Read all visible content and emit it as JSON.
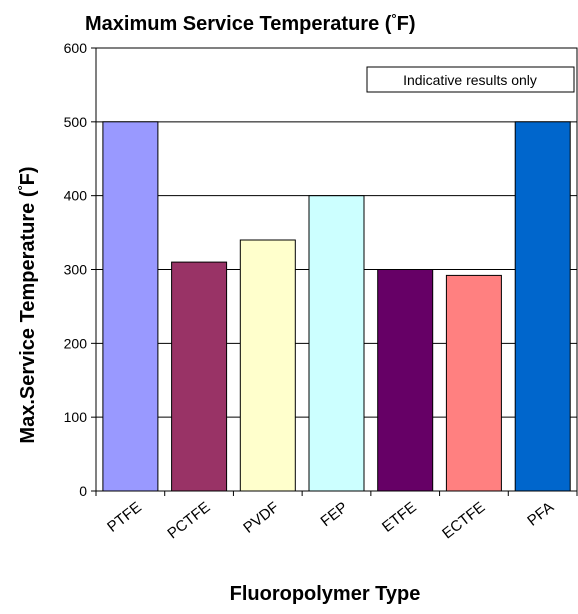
{
  "chart_data": {
    "type": "bar",
    "title": "Maximum Service Temperature (°F)",
    "xlabel": "Fluoropolymer Type",
    "ylabel": "Max.Service Temperature (°F)",
    "categories": [
      "PTFE",
      "PCTFE",
      "PVDF",
      "FEP",
      "ETFE",
      "ECTFE",
      "PFA"
    ],
    "values": [
      500,
      310,
      340,
      400,
      300,
      292,
      500
    ],
    "colors": [
      "#9999ff",
      "#993366",
      "#ffffcc",
      "#ccffff",
      "#660066",
      "#ff8080",
      "#0066cc"
    ],
    "ylim": [
      0,
      600
    ],
    "yticks": [
      0,
      100,
      200,
      300,
      400,
      500,
      600
    ],
    "ytick_labels": [
      "0",
      "100",
      "200",
      "300",
      "400",
      "500",
      "600"
    ],
    "grid": true,
    "annotation": "Indicative results only"
  }
}
